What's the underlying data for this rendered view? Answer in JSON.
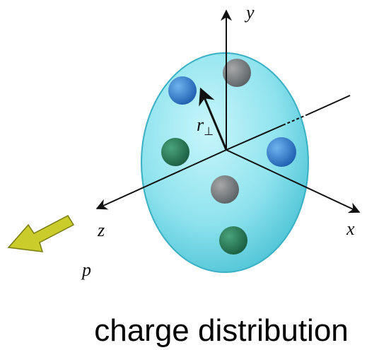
{
  "axes": {
    "y": "y",
    "x": "x",
    "z": "z"
  },
  "vector": {
    "label": "r",
    "subscript": "⊥"
  },
  "momentum": "p",
  "caption": "charge distribution"
}
